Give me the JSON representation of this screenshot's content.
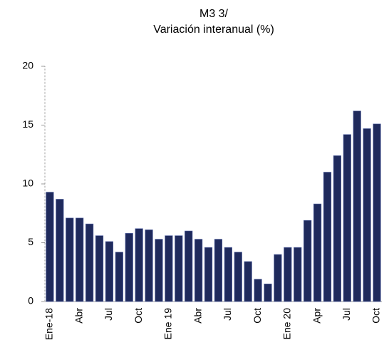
{
  "chart_data": {
    "type": "bar",
    "title": "M3 3/",
    "subtitle": "Variación interanual (%)",
    "categories": [
      "Ene-18",
      null,
      null,
      "Abr",
      null,
      null,
      "Jul",
      null,
      null,
      "Oct",
      null,
      null,
      "Ene 19",
      null,
      null,
      "Abr",
      null,
      null,
      "Jul",
      null,
      null,
      "Oct",
      null,
      null,
      "Ene 20",
      null,
      null,
      "Apr",
      null,
      null,
      "Jul",
      null,
      null,
      "Oct"
    ],
    "values": [
      9.3,
      8.7,
      7.1,
      7.1,
      6.6,
      5.6,
      5.1,
      4.2,
      5.8,
      6.2,
      6.1,
      5.3,
      5.6,
      5.6,
      6.0,
      5.3,
      4.6,
      5.3,
      4.6,
      4.2,
      3.4,
      1.9,
      1.5,
      4.0,
      4.6,
      4.6,
      6.9,
      8.3,
      11.0,
      12.4,
      14.2,
      16.2,
      14.7,
      15.1
    ],
    "color": "#1f2a5c",
    "ylim": [
      0,
      20
    ],
    "yticks": [
      0,
      5,
      10,
      15,
      20
    ],
    "grid": false
  }
}
